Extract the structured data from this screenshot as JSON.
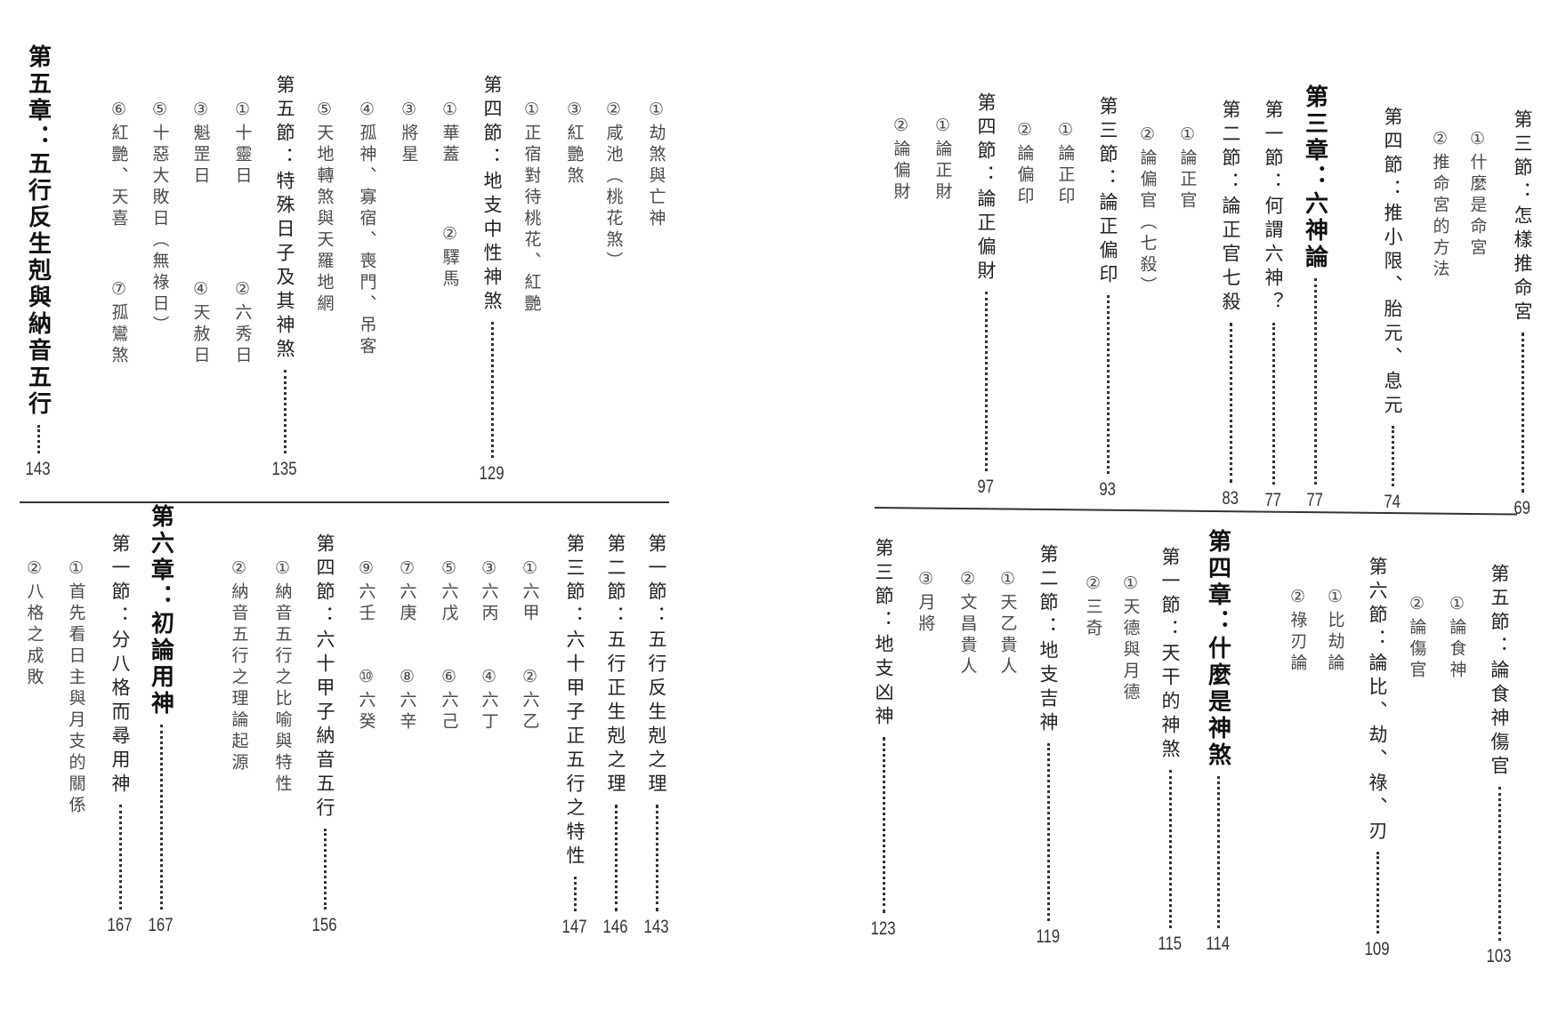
{
  "left_page": {
    "top_entries": [
      {
        "level": "item",
        "items": [
          "①劫煞與亡神"
        ]
      },
      {
        "level": "item",
        "items": [
          "②咸池（桃花煞）"
        ]
      },
      {
        "level": "item",
        "items": [
          "③紅艷煞"
        ]
      },
      {
        "level": "item",
        "items": [
          "①正宿對待桃花、紅艷"
        ]
      },
      {
        "level": "section",
        "text": "第四節：地支中性神煞",
        "page": "129"
      },
      {
        "level": "item",
        "items": [
          "①華蓋",
          "②驛馬"
        ]
      },
      {
        "level": "item",
        "items": [
          "③將星"
        ]
      },
      {
        "level": "item",
        "items": [
          "④孤神、寡宿、喪門、吊客"
        ]
      },
      {
        "level": "item",
        "items": [
          "⑤天地轉煞與天羅地網"
        ]
      },
      {
        "level": "section",
        "text": "第五節：特殊日子及其神煞",
        "page": "135"
      },
      {
        "level": "item",
        "items": [
          "①十靈日",
          "②六秀日"
        ]
      },
      {
        "level": "item",
        "items": [
          "③魁罡日",
          "④天赦日"
        ]
      },
      {
        "level": "item",
        "items": [
          "⑤十惡大敗日（無祿日）"
        ]
      },
      {
        "level": "item",
        "items": [
          "⑥紅艷、天喜",
          "⑦孤鸞煞"
        ]
      },
      {
        "level": "chapter",
        "text": "第五章：五行反生剋與納音五行",
        "page": "143"
      }
    ],
    "bottom_entries": [
      {
        "level": "section",
        "text": "第一節：五行反生剋之理",
        "page": "143"
      },
      {
        "level": "section",
        "text": "第二節：五行正生剋之理",
        "page": "146"
      },
      {
        "level": "section",
        "text": "第三節：六十甲子正五行之特性",
        "page": "147"
      },
      {
        "level": "item",
        "items": [
          "①六甲",
          "②六乙"
        ]
      },
      {
        "level": "item",
        "items": [
          "③六丙",
          "④六丁"
        ]
      },
      {
        "level": "item",
        "items": [
          "⑤六戊",
          "⑥六己"
        ]
      },
      {
        "level": "item",
        "items": [
          "⑦六庚",
          "⑧六辛"
        ]
      },
      {
        "level": "item",
        "items": [
          "⑨六壬",
          "⑩六癸"
        ]
      },
      {
        "level": "section",
        "text": "第四節：六十甲子納音五行",
        "page": "156"
      },
      {
        "level": "item",
        "items": [
          "①納音五行之比喻與特性"
        ]
      },
      {
        "level": "item",
        "items": [
          "②納音五行之理論起源"
        ]
      },
      {
        "level": "chapter",
        "text": "第六章：初論用神",
        "page": "167"
      },
      {
        "level": "section",
        "text": "第一節：分八格而尋用神",
        "page": "167"
      },
      {
        "level": "item",
        "items": [
          "①首先看日主與月支的關係"
        ]
      },
      {
        "level": "item",
        "items": [
          "②八格之成敗"
        ]
      }
    ]
  },
  "right_page": {
    "top_entries": [
      {
        "level": "section",
        "text": "第三節：怎樣推命宮",
        "page": "69"
      },
      {
        "level": "item",
        "items": [
          "①什麼是命宮"
        ]
      },
      {
        "level": "item",
        "items": [
          "②推命宮的方法"
        ]
      },
      {
        "level": "section",
        "text": "第四節：推小限、胎元、息元",
        "page": "74"
      },
      {
        "level": "chapter",
        "text": "第三章：六神論",
        "page": "77"
      },
      {
        "level": "section",
        "text": "第一節：何謂六神？",
        "page": "77"
      },
      {
        "level": "section",
        "text": "第二節：論正官七殺",
        "page": "83"
      },
      {
        "level": "item",
        "items": [
          "①論正官"
        ]
      },
      {
        "level": "item",
        "items": [
          "②論偏官（七殺）"
        ]
      },
      {
        "level": "section",
        "text": "第三節：論正偏印",
        "page": "93"
      },
      {
        "level": "item",
        "items": [
          "①論正印"
        ]
      },
      {
        "level": "item",
        "items": [
          "②論偏印"
        ]
      },
      {
        "level": "section",
        "text": "第四節：論正偏財",
        "page": "97"
      },
      {
        "level": "item",
        "items": [
          "①論正財"
        ]
      },
      {
        "level": "item",
        "items": [
          "②論偏財"
        ]
      }
    ],
    "bottom_entries": [
      {
        "level": "section",
        "text": "第五節：論食神傷官",
        "page": "103"
      },
      {
        "level": "item",
        "items": [
          "①論食神"
        ]
      },
      {
        "level": "item",
        "items": [
          "②論傷官"
        ]
      },
      {
        "level": "section",
        "text": "第六節：論比、劫、祿、刃",
        "page": "109"
      },
      {
        "level": "item",
        "items": [
          "①比劫論"
        ]
      },
      {
        "level": "item",
        "items": [
          "②祿刃論"
        ]
      },
      {
        "level": "chapter",
        "text": "第四章：什麼是神煞",
        "page": "114"
      },
      {
        "level": "section",
        "text": "第一節：天干的神煞",
        "page": "115"
      },
      {
        "level": "item",
        "items": [
          "①天德與月德"
        ]
      },
      {
        "level": "item",
        "items": [
          "②三奇"
        ]
      },
      {
        "level": "section",
        "text": "第二節：地支吉神",
        "page": "119"
      },
      {
        "level": "item",
        "items": [
          "①天乙貴人"
        ]
      },
      {
        "level": "item",
        "items": [
          "②文昌貴人"
        ]
      },
      {
        "level": "item",
        "items": [
          "③月將"
        ]
      },
      {
        "level": "section",
        "text": "第三節：地支凶神",
        "page": "123"
      }
    ]
  }
}
